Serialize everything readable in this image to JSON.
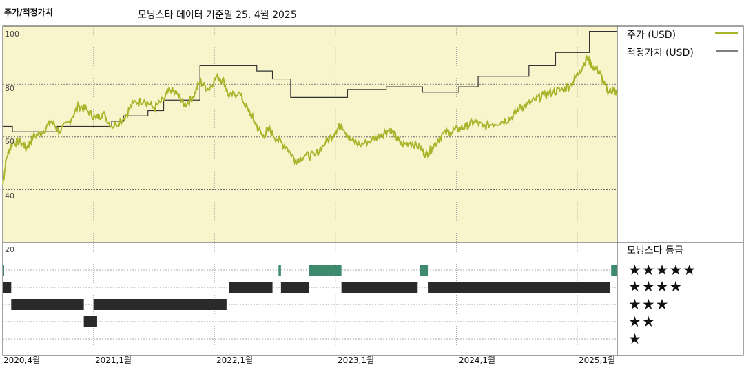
{
  "header": {
    "panel_title": "주가/적정가치",
    "source_note": "모닝스타 데이터 기준일 25. 4월 2025"
  },
  "legend": {
    "price_label": "주가 (USD)",
    "fair_label": "적정가치 (USD)",
    "rating_title": "모닝스타 등급"
  },
  "star_rows": [
    "★★★★★",
    "★★★★",
    "★★★",
    "★★",
    "★"
  ],
  "colors": {
    "price": "#a8b42a",
    "fair": "#333333",
    "upper_bg": "#f8f4cc",
    "five_star": "#3e8a6e",
    "other_star": "#2a2a2a"
  },
  "chart_data": {
    "type": "line",
    "y_ticks": [
      "100",
      "80",
      "60",
      "40",
      "20"
    ],
    "ylim": [
      20,
      102
    ],
    "x_ticks": [
      "2020,4월",
      "2021,1월",
      "2022,1월",
      "2023,1월",
      "2024,1월",
      "2025,1월"
    ],
    "x_tick_values": [
      2020.25,
      2021.0,
      2022.0,
      2023.0,
      2024.0,
      2025.0
    ],
    "xlim": [
      2020.25,
      2025.33
    ],
    "series": [
      {
        "name": "주가 (USD)",
        "points": [
          [
            2020.25,
            42
          ],
          [
            2020.28,
            52
          ],
          [
            2020.33,
            58
          ],
          [
            2020.4,
            58
          ],
          [
            2020.45,
            56
          ],
          [
            2020.5,
            60
          ],
          [
            2020.58,
            62
          ],
          [
            2020.65,
            66
          ],
          [
            2020.72,
            62
          ],
          [
            2020.8,
            66
          ],
          [
            2020.88,
            72
          ],
          [
            2020.95,
            70
          ],
          [
            2021.02,
            67
          ],
          [
            2021.08,
            69
          ],
          [
            2021.15,
            64
          ],
          [
            2021.25,
            67
          ],
          [
            2021.33,
            73
          ],
          [
            2021.42,
            74
          ],
          [
            2021.5,
            71
          ],
          [
            2021.58,
            74
          ],
          [
            2021.63,
            78
          ],
          [
            2021.7,
            76
          ],
          [
            2021.75,
            72
          ],
          [
            2021.82,
            75
          ],
          [
            2021.88,
            81
          ],
          [
            2021.95,
            78
          ],
          [
            2022.02,
            83
          ],
          [
            2022.08,
            81
          ],
          [
            2022.12,
            75
          ],
          [
            2022.2,
            77
          ],
          [
            2022.28,
            70
          ],
          [
            2022.33,
            66
          ],
          [
            2022.4,
            60
          ],
          [
            2022.45,
            63
          ],
          [
            2022.52,
            59
          ],
          [
            2022.6,
            56
          ],
          [
            2022.67,
            51
          ],
          [
            2022.75,
            53
          ],
          [
            2022.83,
            53
          ],
          [
            2022.92,
            58
          ],
          [
            2023.0,
            62
          ],
          [
            2023.05,
            65
          ],
          [
            2023.12,
            59
          ],
          [
            2023.2,
            57
          ],
          [
            2023.3,
            59
          ],
          [
            2023.38,
            61
          ],
          [
            2023.45,
            63
          ],
          [
            2023.5,
            60
          ],
          [
            2023.55,
            57
          ],
          [
            2023.62,
            58
          ],
          [
            2023.7,
            56
          ],
          [
            2023.75,
            53
          ],
          [
            2023.8,
            56
          ],
          [
            2023.88,
            61
          ],
          [
            2023.95,
            62
          ],
          [
            2024.02,
            63
          ],
          [
            2024.08,
            64
          ],
          [
            2024.15,
            66
          ],
          [
            2024.22,
            64
          ],
          [
            2024.3,
            65
          ],
          [
            2024.38,
            66
          ],
          [
            2024.45,
            67
          ],
          [
            2024.52,
            71
          ],
          [
            2024.58,
            72
          ],
          [
            2024.65,
            74
          ],
          [
            2024.72,
            76
          ],
          [
            2024.8,
            77
          ],
          [
            2024.88,
            78
          ],
          [
            2024.95,
            80
          ],
          [
            2025.02,
            85
          ],
          [
            2025.08,
            90
          ],
          [
            2025.12,
            87
          ],
          [
            2025.18,
            85
          ],
          [
            2025.22,
            80
          ],
          [
            2025.26,
            77
          ],
          [
            2025.3,
            78
          ],
          [
            2025.33,
            76
          ]
        ]
      },
      {
        "name": "적정가치 (USD)",
        "steps": [
          [
            2020.25,
            64
          ],
          [
            2020.33,
            62
          ],
          [
            2020.7,
            64
          ],
          [
            2021.15,
            66
          ],
          [
            2021.25,
            68
          ],
          [
            2021.45,
            70
          ],
          [
            2021.58,
            74
          ],
          [
            2021.88,
            87
          ],
          [
            2022.35,
            85
          ],
          [
            2022.48,
            82
          ],
          [
            2022.63,
            75
          ],
          [
            2023.1,
            78
          ],
          [
            2023.42,
            79
          ],
          [
            2023.72,
            77
          ],
          [
            2024.02,
            79
          ],
          [
            2024.18,
            83
          ],
          [
            2024.6,
            87
          ],
          [
            2024.82,
            92
          ],
          [
            2025.1,
            100
          ],
          [
            2025.33,
            100
          ]
        ]
      }
    ],
    "rating_bars": [
      {
        "rating": 5,
        "start": 2020.25,
        "end": 2020.26
      },
      {
        "rating": 5,
        "start": 2022.53,
        "end": 2022.55
      },
      {
        "rating": 5,
        "start": 2022.78,
        "end": 2023.05
      },
      {
        "rating": 5,
        "start": 2023.7,
        "end": 2023.77
      },
      {
        "rating": 5,
        "start": 2025.28,
        "end": 2025.33
      },
      {
        "rating": 4,
        "start": 2020.25,
        "end": 2020.32
      },
      {
        "rating": 4,
        "start": 2022.12,
        "end": 2022.48
      },
      {
        "rating": 4,
        "start": 2022.55,
        "end": 2022.78
      },
      {
        "rating": 4,
        "start": 2023.05,
        "end": 2023.68
      },
      {
        "rating": 4,
        "start": 2023.77,
        "end": 2025.27
      },
      {
        "rating": 3,
        "start": 2020.32,
        "end": 2020.92
      },
      {
        "rating": 3,
        "start": 2021.0,
        "end": 2022.1
      },
      {
        "rating": 2,
        "start": 2020.92,
        "end": 2021.03
      }
    ]
  }
}
